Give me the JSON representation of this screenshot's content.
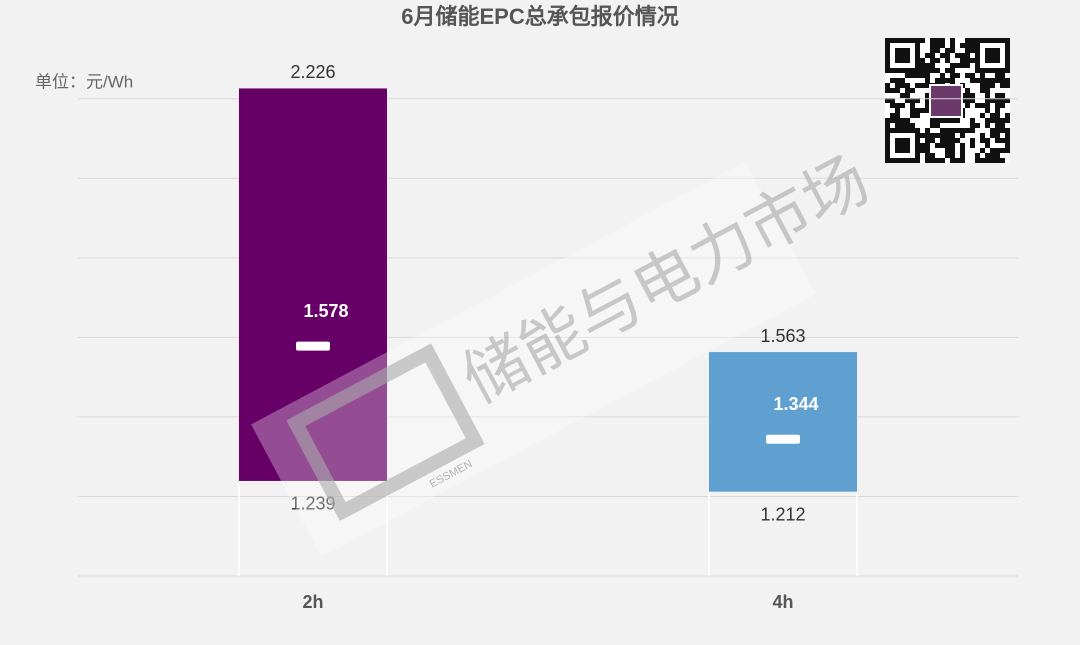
{
  "chart_data": {
    "type": "range_bar",
    "title": "6月储能EPC总承包报价情况",
    "unit_label": "单位：元/Wh",
    "categories": [
      "2h",
      "4h"
    ],
    "low": [
      1.239,
      1.212
    ],
    "high": [
      2.226,
      1.563
    ],
    "mean": [
      1.578,
      1.344
    ],
    "colors": [
      "#660066",
      "#5fa0d0"
    ],
    "ylim": [
      1.0,
      2.3
    ],
    "yticks": [
      1.0,
      1.2,
      1.4,
      1.6,
      1.8,
      2.0,
      2.2
    ],
    "grid": true,
    "watermark": {
      "text": "储能与电力市场",
      "brand": "ESSMEN"
    }
  }
}
